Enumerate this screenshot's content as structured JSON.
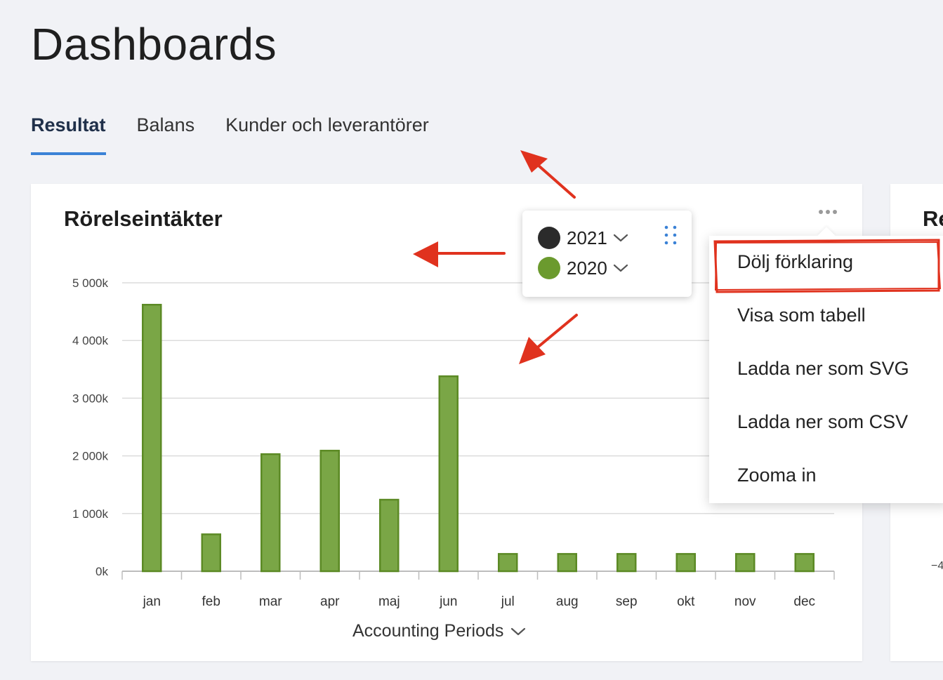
{
  "page": {
    "title": "Dashboards"
  },
  "tabs": [
    {
      "label": "Resultat",
      "active": true
    },
    {
      "label": "Balans",
      "active": false
    },
    {
      "label": "Kunder och leverantörer",
      "active": false
    }
  ],
  "card": {
    "title": "Rörelseintäkter",
    "menu_icon": "more-horizontal-icon",
    "x_axis_title": "Accounting Periods"
  },
  "card2": {
    "title_partial": "Re",
    "tick_partial": "−4"
  },
  "legend": {
    "items": [
      {
        "label": "2021",
        "color": "#2b2b2b"
      },
      {
        "label": "2020",
        "color": "#6b9a2e"
      }
    ],
    "drag_icon": "drag-handle-icon"
  },
  "menu": {
    "items": [
      {
        "label": "Dölj förklaring",
        "highlighted": true
      },
      {
        "label": "Visa som tabell"
      },
      {
        "label": "Ladda ner som SVG"
      },
      {
        "label": "Ladda ner som CSV"
      },
      {
        "label": "Zooma in"
      }
    ]
  },
  "annotation_color": "#e0321e",
  "chart_data": {
    "type": "bar",
    "title": "Rörelseintäkter",
    "xlabel": "Accounting Periods",
    "ylabel": "",
    "categories": [
      "jan",
      "feb",
      "mar",
      "apr",
      "maj",
      "jun",
      "jul",
      "aug",
      "sep",
      "okt",
      "nov",
      "dec"
    ],
    "series": [
      {
        "name": "2020",
        "color": "#7aa646",
        "values": [
          4620,
          640,
          2030,
          2090,
          1240,
          3380,
          300,
          300,
          300,
          300,
          300,
          300
        ]
      }
    ],
    "y_ticks": [
      {
        "value": 0,
        "label": "0k"
      },
      {
        "value": 1000,
        "label": "1 000k"
      },
      {
        "value": 2000,
        "label": "2 000k"
      },
      {
        "value": 3000,
        "label": "3 000k"
      },
      {
        "value": 4000,
        "label": "4 000k"
      },
      {
        "value": 5000,
        "label": "5 000k"
      }
    ],
    "ylim": [
      0,
      5000
    ],
    "grid": true,
    "legend_position": "top-right"
  }
}
